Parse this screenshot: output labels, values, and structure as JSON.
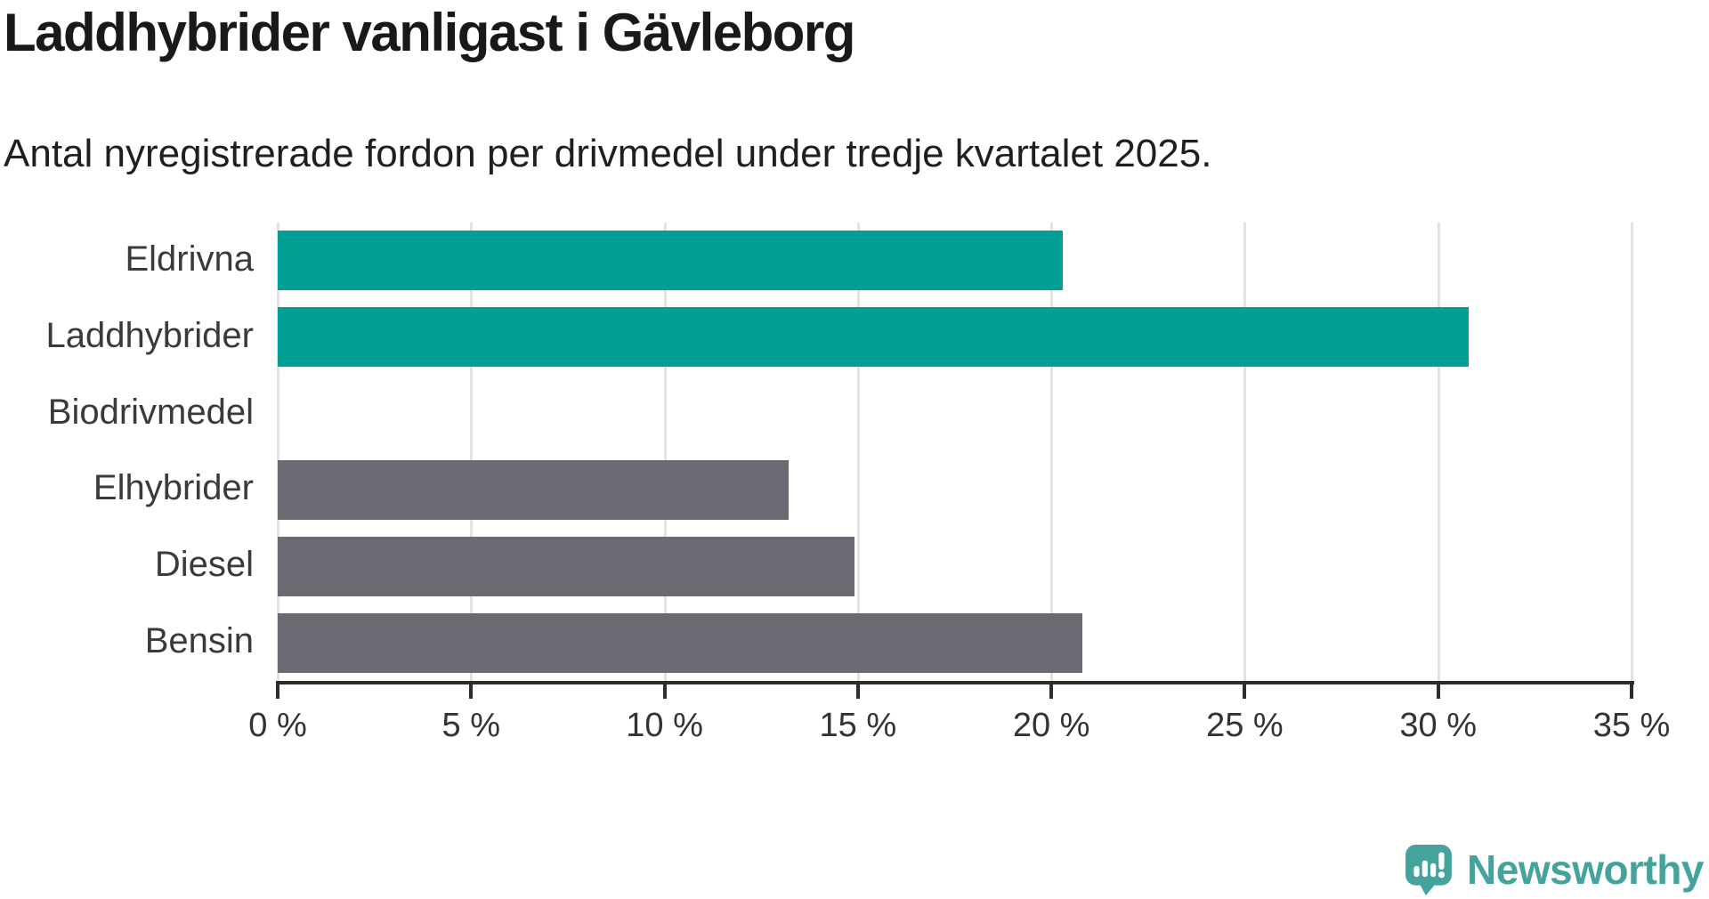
{
  "header": {
    "title": "Laddhybrider vanligast i Gävleborg",
    "subtitle": "Antal nyregistrerade fordon per drivmedel under tredje kvartalet 2025."
  },
  "branding": {
    "logo_text": "Newsworthy",
    "logo_color": "#44a39c",
    "logo_icon": "speech-bubble-bar-chart-exclamation"
  },
  "colors": {
    "highlight_bar": "#00a096",
    "default_bar": "#6b6a72",
    "gridline": "#e2e2e2",
    "axis": "#2d2d2d",
    "title_text": "#191919",
    "label_text": "#3a3a3a",
    "tick_text": "#333333"
  },
  "chart_data": {
    "type": "bar",
    "orientation": "horizontal",
    "title": "Laddhybrider vanligast i Gävleborg",
    "subtitle": "Antal nyregistrerade fordon per drivmedel under tredje kvartalet 2025.",
    "categories": [
      "Eldrivna",
      "Laddhybrider",
      "Biodrivmedel",
      "Elhybrider",
      "Diesel",
      "Bensin"
    ],
    "values": [
      20.3,
      30.8,
      0,
      13.2,
      14.9,
      20.8
    ],
    "unit": "%",
    "bar_colors": [
      "#00a096",
      "#00a096",
      "#6b6a72",
      "#6b6a72",
      "#6b6a72",
      "#6b6a72"
    ],
    "xlim": [
      0,
      35
    ],
    "x_tick_step": 5,
    "x_tick_labels": [
      "0 %",
      "5 %",
      "10 %",
      "15 %",
      "20 %",
      "25 %",
      "30 %",
      "35 %"
    ],
    "grid": "vertical",
    "legend": "none"
  }
}
